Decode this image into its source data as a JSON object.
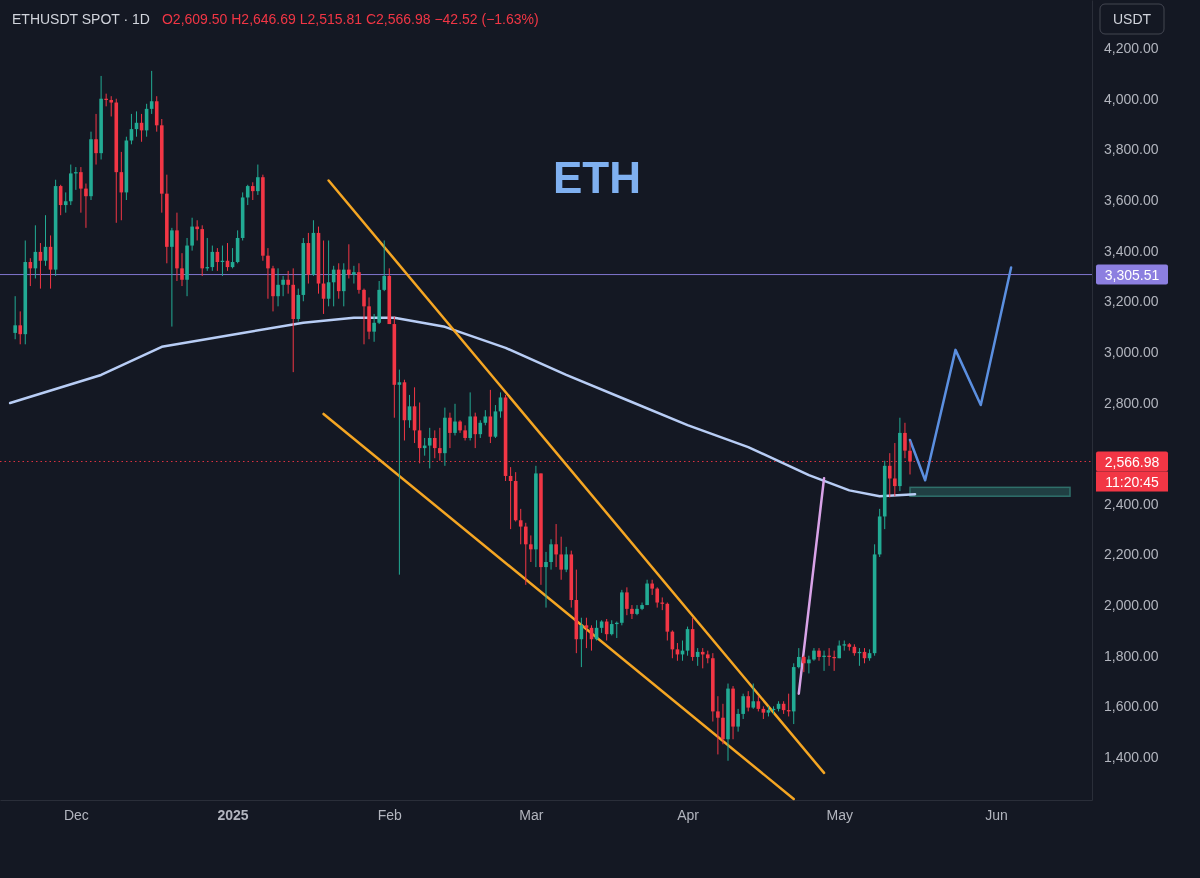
{
  "chart_data": {
    "type": "candlestick",
    "title": "ETHUSDT SPOT · 1D",
    "subtitle": "O2,609.50 H2,646.69 L2,515.81 C2,566.98 −42.52 (−1.63%)",
    "annotations": [
      "ETH",
      "USDT",
      "11:20:45"
    ],
    "xlim": [
      "2024-11-16",
      "2025-06-20"
    ],
    "xticks": [
      {
        "value": "2024-12-01",
        "label": "Dec"
      },
      {
        "value": "2025-01-01",
        "label": "2025"
      },
      {
        "value": "2025-02-01",
        "label": "Feb"
      },
      {
        "value": "2025-03-01",
        "label": "Mar"
      },
      {
        "value": "2025-04-01",
        "label": "Apr"
      },
      {
        "value": "2025-05-01",
        "label": "May"
      },
      {
        "value": "2025-06-01",
        "label": "Jun"
      }
    ],
    "ylim": [
      1230,
      4390
    ],
    "yticks": [
      {
        "value": 1400,
        "label": "1,400.00"
      },
      {
        "value": 1600,
        "label": "1,600.00"
      },
      {
        "value": 1800,
        "label": "1,800.00"
      },
      {
        "value": 2000,
        "label": "2,000.00"
      },
      {
        "value": 2200,
        "label": "2,200.00"
      },
      {
        "value": 2400,
        "label": "2,400.00"
      },
      {
        "value": 2800,
        "label": "2,800.00"
      },
      {
        "value": 3000,
        "label": "3,000.00"
      },
      {
        "value": 3200,
        "label": "3,200.00"
      },
      {
        "value": 3400,
        "label": "3,400.00"
      },
      {
        "value": 3600,
        "label": "3,600.00"
      },
      {
        "value": 3800,
        "label": "3,800.00"
      },
      {
        "value": 4000,
        "label": "4,000.00"
      },
      {
        "value": 4200,
        "label": "4,200.00"
      }
    ],
    "ref_lines": [
      {
        "axis": "y",
        "value": 3305.51,
        "label": "3,305.51",
        "color": "#8c7fe0"
      },
      {
        "axis": "y",
        "value": 2566.98,
        "label": "2,566.98",
        "color": "#f23645",
        "line_style": "dotted"
      }
    ],
    "bands": [
      {
        "axis": "y",
        "from": 2430,
        "to": 2465,
        "color": "#2f6f6a"
      }
    ],
    "series": [
      {
        "type": "line",
        "color": "#b8cdf5",
        "x": [
          "2024-11-18",
          "2024-12-06",
          "2024-12-18",
          "2025-01-03",
          "2025-01-15",
          "2025-01-25",
          "2025-02-02",
          "2025-02-12",
          "2025-02-24",
          "2025-03-08",
          "2025-03-20",
          "2025-04-01",
          "2025-04-13",
          "2025-04-25",
          "2025-05-03",
          "2025-05-09",
          "2025-05-16"
        ],
        "values": [
          2798,
          2909,
          3020,
          3075,
          3115,
          3135,
          3135,
          3099,
          3016,
          2909,
          2810,
          2711,
          2624,
          2513,
          2453,
          2430,
          2438
        ]
      },
      {
        "type": "line",
        "color": "#f5a623",
        "x": [
          "2025-01-20",
          "2025-04-28"
        ],
        "values": [
          3677,
          1337
        ]
      },
      {
        "type": "line",
        "color": "#f5a623",
        "x": [
          "2025-01-19",
          "2025-04-22"
        ],
        "values": [
          2755,
          1234
        ]
      },
      {
        "type": "line",
        "color": "#5b8fe0",
        "x": [
          "2025-05-15",
          "2025-05-18",
          "2025-05-24",
          "2025-05-29",
          "2025-06-04"
        ],
        "values": [
          2652,
          2493,
          3008,
          2790,
          3333
        ]
      },
      {
        "type": "line",
        "color": "#d9a3e8",
        "x": [
          "2025-04-23",
          "2025-04-28"
        ],
        "values": [
          1650,
          2501
        ]
      }
    ],
    "x": [
      "2024-11-19",
      "2024-11-20",
      "2024-11-21",
      "2024-11-22",
      "2024-11-23",
      "2024-11-24",
      "2024-11-25",
      "2024-11-26",
      "2024-11-27",
      "2024-11-28",
      "2024-11-29",
      "2024-11-30",
      "2024-12-01",
      "2024-12-02",
      "2024-12-03",
      "2024-12-04",
      "2024-12-05",
      "2024-12-06",
      "2024-12-07",
      "2024-12-08",
      "2024-12-09",
      "2024-12-10",
      "2024-12-11",
      "2024-12-12",
      "2024-12-13",
      "2024-12-14",
      "2024-12-15",
      "2024-12-16",
      "2024-12-17",
      "2024-12-18",
      "2024-12-19",
      "2024-12-20",
      "2024-12-21",
      "2024-12-22",
      "2024-12-23",
      "2024-12-24",
      "2024-12-25",
      "2024-12-26",
      "2024-12-27",
      "2024-12-28",
      "2024-12-29",
      "2024-12-30",
      "2024-12-31",
      "2025-01-01",
      "2025-01-02",
      "2025-01-03",
      "2025-01-04",
      "2025-01-05",
      "2025-01-06",
      "2025-01-07",
      "2025-01-08",
      "2025-01-09",
      "2025-01-10",
      "2025-01-11",
      "2025-01-12",
      "2025-01-13",
      "2025-01-14",
      "2025-01-15",
      "2025-01-16",
      "2025-01-17",
      "2025-01-18",
      "2025-01-19",
      "2025-01-20",
      "2025-01-21",
      "2025-01-22",
      "2025-01-23",
      "2025-01-24",
      "2025-01-25",
      "2025-01-26",
      "2025-01-27",
      "2025-01-28",
      "2025-01-29",
      "2025-01-30",
      "2025-01-31",
      "2025-02-01",
      "2025-02-02",
      "2025-02-03",
      "2025-02-04",
      "2025-02-05",
      "2025-02-06",
      "2025-02-07",
      "2025-02-08",
      "2025-02-09",
      "2025-02-10",
      "2025-02-11",
      "2025-02-12",
      "2025-02-13",
      "2025-02-14",
      "2025-02-15",
      "2025-02-16",
      "2025-02-17",
      "2025-02-18",
      "2025-02-19",
      "2025-02-20",
      "2025-02-21",
      "2025-02-22",
      "2025-02-23",
      "2025-02-24",
      "2025-02-25",
      "2025-02-26",
      "2025-02-27",
      "2025-02-28",
      "2025-03-01",
      "2025-03-02",
      "2025-03-03",
      "2025-03-04",
      "2025-03-05",
      "2025-03-06",
      "2025-03-07",
      "2025-03-08",
      "2025-03-09",
      "2025-03-10",
      "2025-03-11",
      "2025-03-12",
      "2025-03-13",
      "2025-03-14",
      "2025-03-15",
      "2025-03-16",
      "2025-03-17",
      "2025-03-18",
      "2025-03-19",
      "2025-03-20",
      "2025-03-21",
      "2025-03-22",
      "2025-03-23",
      "2025-03-24",
      "2025-03-25",
      "2025-03-26",
      "2025-03-27",
      "2025-03-28",
      "2025-03-29",
      "2025-03-30",
      "2025-03-31",
      "2025-04-01",
      "2025-04-02",
      "2025-04-03",
      "2025-04-04",
      "2025-04-05",
      "2025-04-06",
      "2025-04-07",
      "2025-04-08",
      "2025-04-09",
      "2025-04-10",
      "2025-04-11",
      "2025-04-12",
      "2025-04-13",
      "2025-04-14",
      "2025-04-15",
      "2025-04-16",
      "2025-04-17",
      "2025-04-18",
      "2025-04-19",
      "2025-04-20",
      "2025-04-21",
      "2025-04-22",
      "2025-04-23",
      "2025-04-24",
      "2025-04-25",
      "2025-04-26",
      "2025-04-27",
      "2025-04-28",
      "2025-04-29",
      "2025-04-30",
      "2025-05-01",
      "2025-05-02",
      "2025-05-03",
      "2025-05-04",
      "2025-05-05",
      "2025-05-06",
      "2025-05-07",
      "2025-05-08",
      "2025-05-09",
      "2025-05-10",
      "2025-05-11",
      "2025-05-12",
      "2025-05-13",
      "2025-05-14",
      "2025-05-15"
    ],
    "ohlc": [
      [
        3075,
        3220,
        3050,
        3105
      ],
      [
        3105,
        3160,
        3030,
        3070
      ],
      [
        3070,
        3440,
        3030,
        3355
      ],
      [
        3355,
        3370,
        3260,
        3330
      ],
      [
        3330,
        3500,
        3290,
        3395
      ],
      [
        3395,
        3430,
        3250,
        3360
      ],
      [
        3360,
        3540,
        3340,
        3415
      ],
      [
        3415,
        3460,
        3250,
        3325
      ],
      [
        3325,
        3680,
        3300,
        3655
      ],
      [
        3655,
        3660,
        3540,
        3580
      ],
      [
        3580,
        3630,
        3550,
        3595
      ],
      [
        3595,
        3740,
        3580,
        3705
      ],
      [
        3705,
        3730,
        3640,
        3710
      ],
      [
        3710,
        3730,
        3550,
        3645
      ],
      [
        3645,
        3665,
        3490,
        3615
      ],
      [
        3615,
        3870,
        3600,
        3840
      ],
      [
        3840,
        3940,
        3740,
        3785
      ],
      [
        3785,
        4090,
        3760,
        4000
      ],
      [
        4000,
        4020,
        3970,
        3995
      ],
      [
        3995,
        4010,
        3930,
        3985
      ],
      [
        3985,
        4000,
        3510,
        3710
      ],
      [
        3710,
        3790,
        3520,
        3630
      ],
      [
        3630,
        3850,
        3600,
        3835
      ],
      [
        3835,
        3940,
        3820,
        3880
      ],
      [
        3880,
        3950,
        3850,
        3905
      ],
      [
        3905,
        3940,
        3830,
        3875
      ],
      [
        3875,
        3980,
        3850,
        3960
      ],
      [
        3960,
        4110,
        3940,
        3990
      ],
      [
        3990,
        4010,
        3870,
        3895
      ],
      [
        3895,
        3920,
        3550,
        3625
      ],
      [
        3625,
        3700,
        3350,
        3415
      ],
      [
        3415,
        3490,
        3100,
        3480
      ],
      [
        3480,
        3550,
        3280,
        3330
      ],
      [
        3330,
        3390,
        3260,
        3285
      ],
      [
        3285,
        3450,
        3220,
        3420
      ],
      [
        3420,
        3530,
        3400,
        3495
      ],
      [
        3495,
        3520,
        3440,
        3485
      ],
      [
        3485,
        3500,
        3300,
        3330
      ],
      [
        3330,
        3450,
        3320,
        3335
      ],
      [
        3335,
        3420,
        3320,
        3395
      ],
      [
        3395,
        3410,
        3320,
        3355
      ],
      [
        3355,
        3420,
        3300,
        3360
      ],
      [
        3360,
        3430,
        3320,
        3335
      ],
      [
        3335,
        3410,
        3330,
        3355
      ],
      [
        3355,
        3480,
        3350,
        3450
      ],
      [
        3450,
        3630,
        3440,
        3610
      ],
      [
        3610,
        3660,
        3580,
        3655
      ],
      [
        3655,
        3670,
        3600,
        3635
      ],
      [
        3635,
        3740,
        3620,
        3690
      ],
      [
        3690,
        3700,
        3360,
        3380
      ],
      [
        3380,
        3410,
        3210,
        3330
      ],
      [
        3330,
        3340,
        3160,
        3220
      ],
      [
        3220,
        3330,
        3180,
        3265
      ],
      [
        3265,
        3300,
        3220,
        3285
      ],
      [
        3285,
        3320,
        3230,
        3265
      ],
      [
        3265,
        3330,
        2920,
        3130
      ],
      [
        3130,
        3250,
        3120,
        3225
      ],
      [
        3225,
        3450,
        3200,
        3430
      ],
      [
        3430,
        3470,
        3270,
        3305
      ],
      [
        3305,
        3520,
        3300,
        3470
      ],
      [
        3470,
        3495,
        3230,
        3270
      ],
      [
        3270,
        3440,
        3150,
        3210
      ],
      [
        3210,
        3440,
        3180,
        3275
      ],
      [
        3275,
        3340,
        3180,
        3325
      ],
      [
        3325,
        3350,
        3210,
        3240
      ],
      [
        3240,
        3350,
        3180,
        3325
      ],
      [
        3325,
        3425,
        3290,
        3305
      ],
      [
        3305,
        3340,
        3270,
        3315
      ],
      [
        3315,
        3350,
        3230,
        3245
      ],
      [
        3245,
        3250,
        3030,
        3180
      ],
      [
        3180,
        3215,
        3050,
        3080
      ],
      [
        3080,
        3150,
        3040,
        3115
      ],
      [
        3115,
        3280,
        3110,
        3245
      ],
      [
        3245,
        3440,
        3240,
        3300
      ],
      [
        3300,
        3330,
        3110,
        3110
      ],
      [
        3110,
        3140,
        2740,
        2870
      ],
      [
        2870,
        2930,
        2120,
        2880
      ],
      [
        2880,
        2890,
        2650,
        2730
      ],
      [
        2730,
        2830,
        2700,
        2785
      ],
      [
        2785,
        2860,
        2640,
        2690
      ],
      [
        2690,
        2800,
        2560,
        2620
      ],
      [
        2620,
        2660,
        2590,
        2630
      ],
      [
        2630,
        2700,
        2540,
        2660
      ],
      [
        2660,
        2690,
        2580,
        2620
      ],
      [
        2620,
        2700,
        2570,
        2600
      ],
      [
        2600,
        2780,
        2550,
        2740
      ],
      [
        2740,
        2760,
        2620,
        2680
      ],
      [
        2680,
        2795,
        2670,
        2725
      ],
      [
        2725,
        2730,
        2680,
        2690
      ],
      [
        2690,
        2710,
        2650,
        2660
      ],
      [
        2660,
        2840,
        2650,
        2745
      ],
      [
        2745,
        2760,
        2620,
        2675
      ],
      [
        2675,
        2730,
        2660,
        2720
      ],
      [
        2720,
        2770,
        2710,
        2745
      ],
      [
        2745,
        2850,
        2640,
        2665
      ],
      [
        2665,
        2790,
        2660,
        2765
      ],
      [
        2765,
        2840,
        2740,
        2820
      ],
      [
        2820,
        2830,
        2490,
        2510
      ],
      [
        2510,
        2545,
        2300,
        2490
      ],
      [
        2490,
        2525,
        2330,
        2335
      ],
      [
        2335,
        2380,
        2240,
        2310
      ],
      [
        2310,
        2325,
        2080,
        2240
      ],
      [
        2240,
        2275,
        2170,
        2220
      ],
      [
        2220,
        2550,
        2150,
        2520
      ],
      [
        2520,
        2520,
        2080,
        2150
      ],
      [
        2150,
        2210,
        1990,
        2170
      ],
      [
        2170,
        2260,
        2140,
        2240
      ],
      [
        2240,
        2320,
        2150,
        2200
      ],
      [
        2200,
        2270,
        2100,
        2140
      ],
      [
        2140,
        2230,
        2130,
        2200
      ],
      [
        2200,
        2215,
        1990,
        2020
      ],
      [
        2020,
        2140,
        1810,
        1865
      ],
      [
        1865,
        1950,
        1755,
        1920
      ],
      [
        1920,
        1950,
        1830,
        1910
      ],
      [
        1910,
        1920,
        1820,
        1865
      ],
      [
        1865,
        1940,
        1860,
        1910
      ],
      [
        1910,
        1940,
        1890,
        1935
      ],
      [
        1935,
        1945,
        1860,
        1885
      ],
      [
        1885,
        1940,
        1880,
        1925
      ],
      [
        1925,
        1935,
        1870,
        1930
      ],
      [
        1930,
        2060,
        1920,
        2050
      ],
      [
        2050,
        2070,
        1960,
        1985
      ],
      [
        1985,
        2000,
        1945,
        1965
      ],
      [
        1965,
        2000,
        1960,
        1985
      ],
      [
        1985,
        2010,
        1980,
        2000
      ],
      [
        2000,
        2100,
        2000,
        2085
      ],
      [
        2085,
        2100,
        2040,
        2065
      ],
      [
        2065,
        2070,
        1990,
        2010
      ],
      [
        2010,
        2030,
        1980,
        2005
      ],
      [
        2005,
        2010,
        1860,
        1895
      ],
      [
        1895,
        1900,
        1790,
        1825
      ],
      [
        1825,
        1850,
        1780,
        1805
      ],
      [
        1805,
        1860,
        1780,
        1820
      ],
      [
        1820,
        1915,
        1800,
        1905
      ],
      [
        1905,
        1950,
        1780,
        1795
      ],
      [
        1795,
        1830,
        1760,
        1815
      ],
      [
        1815,
        1830,
        1750,
        1805
      ],
      [
        1805,
        1820,
        1770,
        1790
      ],
      [
        1790,
        1810,
        1540,
        1580
      ],
      [
        1580,
        1640,
        1410,
        1555
      ],
      [
        1555,
        1610,
        1450,
        1470
      ],
      [
        1470,
        1690,
        1385,
        1670
      ],
      [
        1670,
        1680,
        1470,
        1520
      ],
      [
        1520,
        1590,
        1500,
        1570
      ],
      [
        1570,
        1650,
        1550,
        1640
      ],
      [
        1640,
        1660,
        1580,
        1595
      ],
      [
        1595,
        1690,
        1590,
        1620
      ],
      [
        1620,
        1640,
        1580,
        1590
      ],
      [
        1590,
        1600,
        1550,
        1575
      ],
      [
        1575,
        1600,
        1560,
        1585
      ],
      [
        1585,
        1600,
        1570,
        1590
      ],
      [
        1590,
        1620,
        1580,
        1610
      ],
      [
        1610,
        1620,
        1570,
        1585
      ],
      [
        1585,
        1650,
        1560,
        1580
      ],
      [
        1580,
        1770,
        1530,
        1755
      ],
      [
        1755,
        1830,
        1750,
        1795
      ],
      [
        1795,
        1800,
        1735,
        1770
      ],
      [
        1770,
        1800,
        1730,
        1785
      ],
      [
        1785,
        1830,
        1780,
        1820
      ],
      [
        1820,
        1830,
        1780,
        1795
      ],
      [
        1795,
        1820,
        1740,
        1800
      ],
      [
        1800,
        1830,
        1760,
        1795
      ],
      [
        1795,
        1820,
        1740,
        1790
      ],
      [
        1790,
        1860,
        1790,
        1840
      ],
      [
        1840,
        1860,
        1820,
        1845
      ],
      [
        1845,
        1850,
        1820,
        1835
      ],
      [
        1835,
        1845,
        1800,
        1810
      ],
      [
        1810,
        1830,
        1760,
        1815
      ],
      [
        1815,
        1830,
        1770,
        1790
      ],
      [
        1790,
        1825,
        1780,
        1810
      ],
      [
        1810,
        2240,
        1800,
        2200
      ],
      [
        2200,
        2380,
        2190,
        2350
      ],
      [
        2350,
        2570,
        2300,
        2550
      ],
      [
        2550,
        2600,
        2425,
        2500
      ],
      [
        2500,
        2640,
        2430,
        2470
      ],
      [
        2470,
        2740,
        2450,
        2680
      ],
      [
        2680,
        2720,
        2580,
        2610
      ],
      [
        2609.5,
        2646.69,
        2515.81,
        2566.98
      ]
    ]
  }
}
